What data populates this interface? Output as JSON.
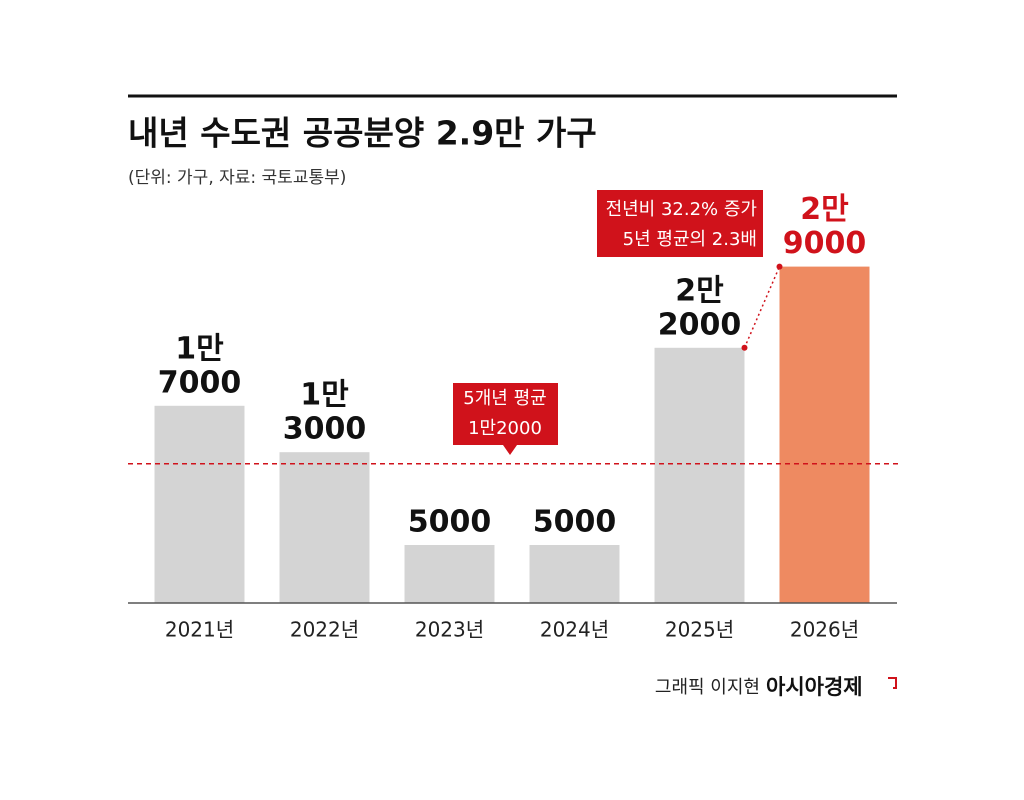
{
  "chart_data": {
    "type": "bar",
    "title": "내년 수도권 공공분양 2.9만 가구",
    "subtitle": "(단위: 가구, 자료: 국토교통부)",
    "categories": [
      "2021년",
      "2022년",
      "2023년",
      "2024년",
      "2025년",
      "2026년"
    ],
    "values": [
      17000,
      13000,
      5000,
      5000,
      22000,
      29000
    ],
    "value_labels": [
      [
        "1만",
        "7000"
      ],
      [
        "1만",
        "3000"
      ],
      [
        "5000"
      ],
      [
        "5000"
      ],
      [
        "2만",
        "2000"
      ],
      [
        "2만",
        "9000"
      ]
    ],
    "colors": [
      "#d4d4d4",
      "#d4d4d4",
      "#d4d4d4",
      "#d4d4d4",
      "#d4d4d4",
      "#ee8a61"
    ],
    "value_label_colors": [
      "#111111",
      "#111111",
      "#111111",
      "#111111",
      "#111111",
      "#d0121b"
    ],
    "ylim": [
      0,
      30000
    ],
    "average": {
      "value": 12000,
      "label": [
        "5개년 평균",
        "1만2000"
      ],
      "color": "#d0121b"
    },
    "callout": [
      "전년비 32.2% 증가",
      "5년 평균의 2.3배"
    ],
    "credit": "그래픽 이지현",
    "logo": "아시아경제"
  }
}
